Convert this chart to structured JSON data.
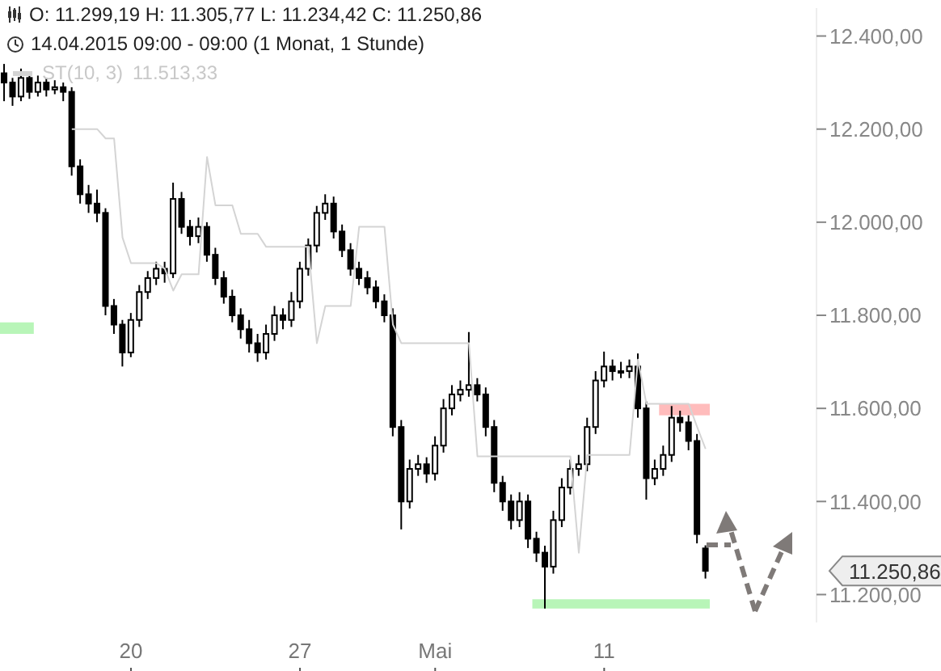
{
  "chart_data": {
    "type": "candlestick",
    "title": "O: 11.299,19  H: 11.305,77  L: 11.234,42  C: 11.250,86",
    "subtitle": "14.04.2015 09:00 - 09:00 (1 Monat, 1 Stunde)",
    "categories": [
      null,
      null,
      null,
      null,
      null,
      null,
      null,
      null,
      null,
      null,
      null,
      null,
      null,
      null,
      null,
      "20",
      null,
      null,
      null,
      null,
      null,
      null,
      null,
      null,
      null,
      null,
      null,
      null,
      null,
      null,
      null,
      null,
      null,
      null,
      null,
      "27",
      null,
      null,
      null,
      null,
      null,
      null,
      null,
      null,
      null,
      null,
      null,
      null,
      null,
      null,
      null,
      "Mai",
      null,
      null,
      null,
      null,
      null,
      null,
      null,
      null,
      null,
      null,
      null,
      null,
      null,
      null,
      null,
      null,
      null,
      null,
      null,
      "11",
      null,
      null,
      null,
      null,
      null,
      null,
      null,
      null,
      null,
      null,
      null,
      null
    ],
    "color": "#000000",
    "ohlc": [
      [
        12320,
        12340,
        12260,
        12300
      ],
      [
        12300,
        12310,
        12250,
        12270
      ],
      [
        12270,
        12330,
        12260,
        12310
      ],
      [
        12310,
        12320,
        12265,
        12280
      ],
      [
        12280,
        12315,
        12270,
        12300
      ],
      [
        12300,
        12310,
        12270,
        12285
      ],
      [
        12285,
        12305,
        12275,
        12290
      ],
      [
        12290,
        12300,
        12260,
        12280
      ],
      [
        12280,
        12290,
        12100,
        12120
      ],
      [
        12120,
        12135,
        12040,
        12060
      ],
      [
        12060,
        12080,
        12020,
        12040
      ],
      [
        12040,
        12070,
        12000,
        12020
      ],
      [
        12020,
        12030,
        11800,
        11820
      ],
      [
        11820,
        11835,
        11760,
        11780
      ],
      [
        11780,
        11790,
        11690,
        11720
      ],
      [
        11720,
        11805,
        11710,
        11790
      ],
      [
        11790,
        11865,
        11775,
        11850
      ],
      [
        11850,
        11895,
        11835,
        11880
      ],
      [
        11880,
        11915,
        11865,
        11900
      ],
      [
        11900,
        11915,
        11870,
        11890
      ],
      [
        11890,
        12085,
        11880,
        12050
      ],
      [
        12050,
        12065,
        11975,
        11990
      ],
      [
        11990,
        12005,
        11950,
        11970
      ],
      [
        11970,
        12010,
        11955,
        11990
      ],
      [
        11990,
        12000,
        11915,
        11930
      ],
      [
        11930,
        11945,
        11865,
        11880
      ],
      [
        11880,
        11895,
        11825,
        11840
      ],
      [
        11840,
        11855,
        11785,
        11800
      ],
      [
        11800,
        11815,
        11750,
        11770
      ],
      [
        11770,
        11790,
        11720,
        11740
      ],
      [
        11740,
        11760,
        11700,
        11720
      ],
      [
        11720,
        11780,
        11705,
        11760
      ],
      [
        11760,
        11820,
        11745,
        11800
      ],
      [
        11800,
        11815,
        11770,
        11790
      ],
      [
        11790,
        11850,
        11775,
        11830
      ],
      [
        11830,
        11915,
        11815,
        11900
      ],
      [
        11900,
        11965,
        11885,
        11950
      ],
      [
        11950,
        12035,
        11935,
        12020
      ],
      [
        12020,
        12060,
        12005,
        12040
      ],
      [
        12040,
        12055,
        11965,
        11980
      ],
      [
        11980,
        11995,
        11925,
        11940
      ],
      [
        11940,
        11955,
        11885,
        11900
      ],
      [
        11900,
        11915,
        11865,
        11880
      ],
      [
        11880,
        11895,
        11845,
        11860
      ],
      [
        11860,
        11875,
        11815,
        11830
      ],
      [
        11830,
        11845,
        11785,
        11800
      ],
      [
        11800,
        11815,
        11540,
        11560
      ],
      [
        11560,
        11575,
        11340,
        11400
      ],
      [
        11400,
        11490,
        11385,
        11470
      ],
      [
        11470,
        11500,
        11455,
        11480
      ],
      [
        11480,
        11495,
        11440,
        11460
      ],
      [
        11460,
        11540,
        11445,
        11520
      ],
      [
        11520,
        11620,
        11505,
        11600
      ],
      [
        11600,
        11650,
        11585,
        11630
      ],
      [
        11630,
        11660,
        11615,
        11640
      ],
      [
        11640,
        11764,
        11625,
        11650
      ],
      [
        11650,
        11665,
        11615,
        11630
      ],
      [
        11630,
        11645,
        11540,
        11560
      ],
      [
        11560,
        11575,
        11420,
        11440
      ],
      [
        11440,
        11455,
        11380,
        11400
      ],
      [
        11400,
        11415,
        11340,
        11360
      ],
      [
        11360,
        11420,
        11345,
        11400
      ],
      [
        11400,
        11415,
        11300,
        11320
      ],
      [
        11320,
        11335,
        11270,
        11290
      ],
      [
        11290,
        11305,
        11170,
        11260
      ],
      [
        11260,
        11380,
        11245,
        11360
      ],
      [
        11360,
        11450,
        11345,
        11430
      ],
      [
        11430,
        11490,
        11415,
        11470
      ],
      [
        11470,
        11500,
        11455,
        11480
      ],
      [
        11480,
        11580,
        11465,
        11560
      ],
      [
        11560,
        11680,
        11545,
        11660
      ],
      [
        11660,
        11722,
        11645,
        11690
      ],
      [
        11690,
        11705,
        11660,
        11680
      ],
      [
        11680,
        11700,
        11665,
        11680
      ],
      [
        11680,
        11705,
        11665,
        11690
      ],
      [
        11690,
        11718,
        11580,
        11600
      ],
      [
        11600,
        11615,
        11404,
        11450
      ],
      [
        11450,
        11490,
        11435,
        11470
      ],
      [
        11470,
        11520,
        11455,
        11500
      ],
      [
        11500,
        11605,
        11485,
        11580
      ],
      [
        11580,
        11595,
        11550,
        11570
      ],
      [
        11570,
        11585,
        11510,
        11530
      ],
      [
        11530,
        11545,
        11310,
        11330
      ],
      [
        11299.19,
        11305.77,
        11234.42,
        11250.86
      ]
    ],
    "series": [
      {
        "name": "ST(10, 3)",
        "type": "line",
        "color": "#d4d4d4",
        "values": [
          null,
          null,
          null,
          null,
          null,
          null,
          null,
          null,
          12200,
          12200,
          12200,
          12200,
          12180,
          12180,
          11967,
          11912,
          11912,
          11912,
          11912,
          11900,
          11853,
          11888,
          11888,
          11888,
          12140,
          12036,
          12036,
          12036,
          11975,
          11975,
          11975,
          11947,
          11947,
          11947,
          11947,
          11947,
          11947,
          11740,
          11820,
          11820,
          11820,
          11820,
          11990,
          11990,
          11990,
          11990,
          11780,
          11740,
          11740,
          11740,
          11740,
          11740,
          11740,
          11740,
          11740,
          11740,
          11497,
          11497,
          11497,
          11497,
          11497,
          11497,
          11497,
          11497,
          11497,
          11497,
          11497,
          11497,
          11290,
          11500,
          11500,
          11500,
          11500,
          11500,
          11500,
          11705,
          11610,
          11610,
          11610,
          11610,
          11610,
          11610,
          11560,
          11513
        ]
      }
    ],
    "annotations": [
      "11.513,33",
      "11.250,86"
    ],
    "legend": "top left",
    "ylim": [
      11140,
      12460
    ],
    "yticks": [
      {
        "value": 11200,
        "label": "11.200,00"
      },
      {
        "value": 11400,
        "label": "11.400,00"
      },
      {
        "value": 11600,
        "label": "11.600,00"
      },
      {
        "value": 11800,
        "label": "11.800,00"
      },
      {
        "value": 12000,
        "label": "12.000,00"
      },
      {
        "value": 12200,
        "label": "12.200,00"
      },
      {
        "value": 12400,
        "label": "12.400,00"
      }
    ],
    "bands": [
      {
        "axis": "y",
        "from": 11760,
        "to": 11785,
        "color": "#b8f5b8"
      },
      {
        "axis": "y",
        "from": 11585,
        "to": 11610,
        "color": "#ffbcbc"
      },
      {
        "axis": "y",
        "from": 11170,
        "to": 11190,
        "color": "#b8f5b8"
      }
    ]
  }
}
